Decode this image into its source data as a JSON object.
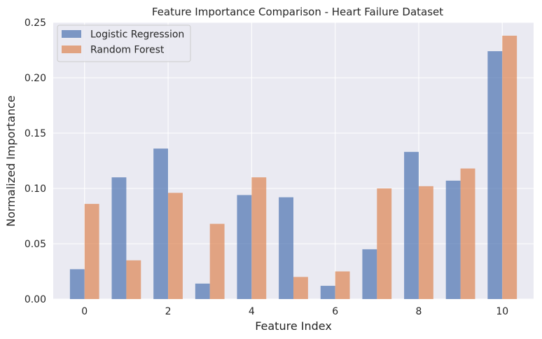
{
  "chart_data": {
    "type": "bar",
    "title": "Feature Importance Comparison - Heart Failure Dataset",
    "xlabel": "Feature Index",
    "ylabel": "Normalized Importance",
    "categories": [
      0,
      1,
      2,
      3,
      4,
      5,
      6,
      7,
      8,
      9,
      10
    ],
    "x_ticks": [
      "0",
      "2",
      "4",
      "6",
      "8",
      "10"
    ],
    "y_ticks": [
      "0.00",
      "0.05",
      "0.10",
      "0.15",
      "0.20",
      "0.25"
    ],
    "ylim": [
      0,
      0.25
    ],
    "xlim": [
      -0.75,
      10.75
    ],
    "grid": true,
    "legend_position": "top-left",
    "series": [
      {
        "name": "Logistic Regression",
        "color": "#4c72b0",
        "values": [
          0.027,
          0.11,
          0.136,
          0.014,
          0.094,
          0.092,
          0.012,
          0.045,
          0.133,
          0.107,
          0.224
        ]
      },
      {
        "name": "Random Forest",
        "color": "#dd8452",
        "values": [
          0.086,
          0.035,
          0.096,
          0.068,
          0.11,
          0.02,
          0.025,
          0.1,
          0.102,
          0.118,
          0.238
        ]
      }
    ]
  }
}
